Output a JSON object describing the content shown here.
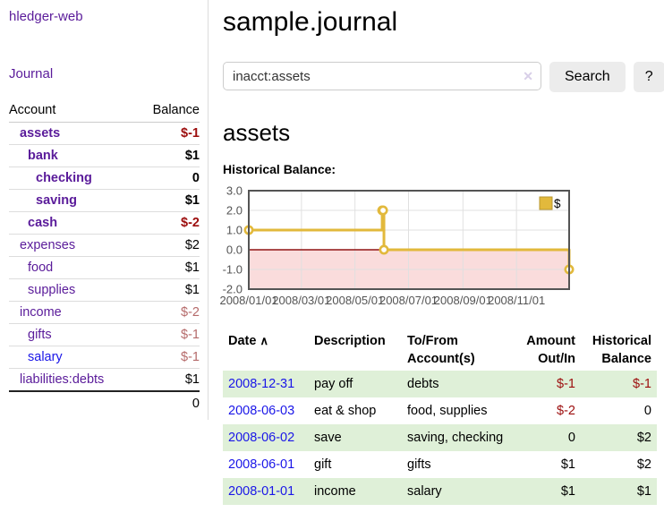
{
  "colors": {
    "link_purple": "#5a1b9a",
    "link_blue": "#1a16e8",
    "neg_strong": "#9c0d0d",
    "neg_soft": "#b56a6a",
    "row_green": "#dff0d8",
    "chart_line": "#e2b93c",
    "chart_negative_fill": "#fadcdc",
    "chart_zero_line": "#8f1313",
    "chart_border": "#545454",
    "grid": "#e0e0e0"
  },
  "sidebar": {
    "brand": "hledger-web",
    "journal_link": "Journal",
    "account_header": "Account",
    "balance_header": "Balance",
    "accounts": [
      {
        "name": "assets",
        "indent": 1,
        "bold": true,
        "balance": "$-1",
        "negative": true,
        "blue": false
      },
      {
        "name": "bank",
        "indent": 2,
        "bold": true,
        "balance": "$1",
        "negative": false,
        "blue": false
      },
      {
        "name": "checking",
        "indent": 3,
        "bold": true,
        "balance": "0",
        "negative": false,
        "blue": false
      },
      {
        "name": "saving",
        "indent": 3,
        "bold": true,
        "balance": "$1",
        "negative": false,
        "blue": false
      },
      {
        "name": "cash",
        "indent": 2,
        "bold": true,
        "balance": "$-2",
        "negative": true,
        "blue": false
      },
      {
        "name": "expenses",
        "indent": 1,
        "bold": false,
        "balance": "$2",
        "negative": false,
        "blue": false
      },
      {
        "name": "food",
        "indent": 2,
        "bold": false,
        "balance": "$1",
        "negative": false,
        "blue": false
      },
      {
        "name": "supplies",
        "indent": 2,
        "bold": false,
        "balance": "$1",
        "negative": false,
        "blue": false
      },
      {
        "name": "income",
        "indent": 1,
        "bold": false,
        "balance": "$-2",
        "negative": true,
        "blue": false
      },
      {
        "name": "gifts",
        "indent": 2,
        "bold": false,
        "balance": "$-1",
        "negative": true,
        "blue": false
      },
      {
        "name": "salary",
        "indent": 2,
        "bold": false,
        "balance": "$-1",
        "negative": true,
        "blue": true
      },
      {
        "name": "liabilities:debts",
        "indent": 1,
        "bold": false,
        "balance": "$1",
        "negative": false,
        "blue": false
      }
    ],
    "total": "0"
  },
  "header": {
    "title": "sample.journal"
  },
  "search": {
    "value": "inacct:assets",
    "clear_icon": "✕",
    "button_label": "Search",
    "help_label": "?"
  },
  "account_page": {
    "heading": "assets",
    "chart_title": "Historical Balance:"
  },
  "chart_data": {
    "type": "line",
    "step": true,
    "series": [
      {
        "name": "$",
        "x": [
          "2008-01-01",
          "2008-06-01",
          "2008-06-02",
          "2008-06-03",
          "2008-12-31"
        ],
        "values": [
          1,
          2,
          2,
          0,
          -1
        ]
      }
    ],
    "xrange": [
      "2008-01-01",
      "2008-12-31"
    ],
    "ylim": [
      -2.0,
      3.0
    ],
    "yticks": [
      "3.0",
      "2.0",
      "1.0",
      "0.0",
      "-1.0",
      "-2.0"
    ],
    "ytick_values": [
      3,
      2,
      1,
      0,
      -1,
      -2
    ],
    "xticks": [
      {
        "v": "2008-01-01",
        "label": "2008/01/01"
      },
      {
        "v": "2008-03-01",
        "label": "2008/03/01"
      },
      {
        "v": "2008-05-01",
        "label": "2008/05/01"
      },
      {
        "v": "2008-07-01",
        "label": "2008/07/01"
      },
      {
        "v": "2008-09-01",
        "label": "2008/09/01"
      },
      {
        "v": "2008-11-01",
        "label": "2008/11/01"
      }
    ],
    "grid": true,
    "negative_region_shaded": true,
    "legend": {
      "label": "$",
      "position": "top-right"
    }
  },
  "register": {
    "columns": [
      "Date",
      "Description",
      "To/From Account(s)",
      "Amount Out/In",
      "Historical Balance"
    ],
    "sort_icon": "∧",
    "rows": [
      {
        "date": "2008-12-31",
        "description": "pay off",
        "accounts": "debts",
        "amount": "$-1",
        "balance": "$-1"
      },
      {
        "date": "2008-06-03",
        "description": "eat & shop",
        "accounts": "food, supplies",
        "amount": "$-2",
        "balance": "0"
      },
      {
        "date": "2008-06-02",
        "description": "save",
        "accounts": "saving, checking",
        "amount": "0",
        "balance": "$2"
      },
      {
        "date": "2008-06-01",
        "description": "gift",
        "accounts": "gifts",
        "amount": "$1",
        "balance": "$2"
      },
      {
        "date": "2008-01-01",
        "description": "income",
        "accounts": "salary",
        "amount": "$1",
        "balance": "$1"
      }
    ]
  }
}
